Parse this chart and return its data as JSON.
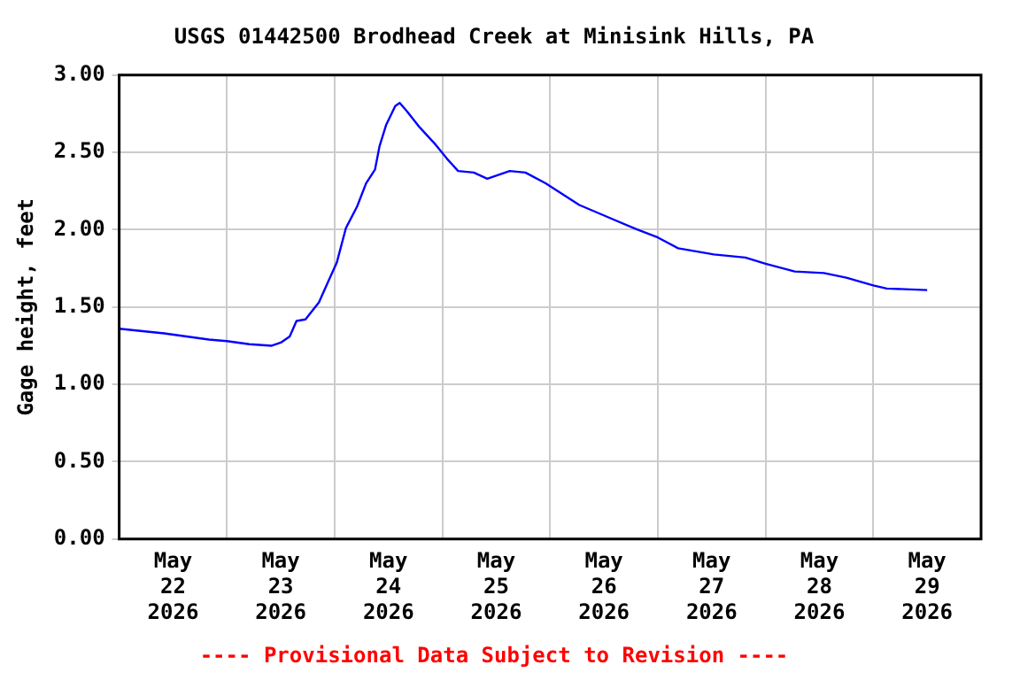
{
  "chart_data": {
    "type": "line",
    "title": "USGS 01442500 Brodhead Creek at Minisink Hills, PA",
    "ylabel": "Gage height, feet",
    "annotations": [
      "---- Provisional Data Subject to Revision ----"
    ],
    "x": [
      "2026-05-22T00:00",
      "2026-05-22T10:00",
      "2026-05-22T20:00",
      "2026-05-23T00:00",
      "2026-05-23T05:00",
      "2026-05-23T10:00",
      "2026-05-23T12:00",
      "2026-05-23T14:00",
      "2026-05-23T15:30",
      "2026-05-23T17:30",
      "2026-05-23T20:30",
      "2026-05-23T22:30",
      "2026-05-24T00:30",
      "2026-05-24T02:30",
      "2026-05-24T05:00",
      "2026-05-24T07:00",
      "2026-05-24T09:00",
      "2026-05-24T10:00",
      "2026-05-24T11:30",
      "2026-05-24T13:30",
      "2026-05-24T14:30",
      "2026-05-24T16:00",
      "2026-05-24T19:00",
      "2026-05-24T22:30",
      "2026-05-25T01:00",
      "2026-05-25T03:30",
      "2026-05-25T07:00",
      "2026-05-25T10:00",
      "2026-05-25T15:00",
      "2026-05-25T18:30",
      "2026-05-25T23:00",
      "2026-05-26T06:30",
      "2026-05-26T13:00",
      "2026-05-26T19:30",
      "2026-05-27T00:00",
      "2026-05-27T04:30",
      "2026-05-27T12:30",
      "2026-05-27T19:30",
      "2026-05-28T00:00",
      "2026-05-28T06:30",
      "2026-05-28T13:00",
      "2026-05-28T18:00",
      "2026-05-29T00:00",
      "2026-05-29T03:00",
      "2026-05-29T12:00"
    ],
    "series": [
      {
        "color": "#0000ff",
        "values": [
          1.36,
          1.33,
          1.29,
          1.28,
          1.26,
          1.25,
          1.27,
          1.31,
          1.41,
          1.42,
          1.53,
          1.66,
          1.79,
          2.01,
          2.15,
          2.3,
          2.39,
          2.54,
          2.68,
          2.8,
          2.82,
          2.77,
          2.66,
          2.55,
          2.46,
          2.38,
          2.37,
          2.33,
          2.38,
          2.37,
          2.3,
          2.16,
          2.08,
          2.0,
          1.95,
          1.88,
          1.84,
          1.82,
          1.78,
          1.73,
          1.72,
          1.69,
          1.64,
          1.62,
          1.61
        ]
      }
    ],
    "xlim": [
      "2026-05-22T00:00",
      "2026-05-30T00:00"
    ],
    "xticks": [
      {
        "value": "2026-05-22T12:00",
        "label": "May\n22\n2026"
      },
      {
        "value": "2026-05-23T00:00",
        "label": null
      },
      {
        "value": "2026-05-23T12:00",
        "label": "May\n23\n2026"
      },
      {
        "value": "2026-05-24T00:00",
        "label": null
      },
      {
        "value": "2026-05-24T12:00",
        "label": "May\n24\n2026"
      },
      {
        "value": "2026-05-25T00:00",
        "label": null
      },
      {
        "value": "2026-05-25T12:00",
        "label": "May\n25\n2026"
      },
      {
        "value": "2026-05-26T00:00",
        "label": null
      },
      {
        "value": "2026-05-26T12:00",
        "label": "May\n26\n2026"
      },
      {
        "value": "2026-05-27T00:00",
        "label": null
      },
      {
        "value": "2026-05-27T12:00",
        "label": "May\n27\n2026"
      },
      {
        "value": "2026-05-28T00:00",
        "label": null
      },
      {
        "value": "2026-05-28T12:00",
        "label": "May\n28\n2026"
      },
      {
        "value": "2026-05-29T00:00",
        "label": null
      },
      {
        "value": "2026-05-29T12:00",
        "label": "May\n29\n2026"
      }
    ],
    "ylim": [
      0,
      3
    ],
    "yticks": [
      {
        "value": 0,
        "label": "0.00"
      },
      {
        "value": 0.5,
        "label": "0.50"
      },
      {
        "value": 1,
        "label": "1.00"
      },
      {
        "value": 1.5,
        "label": "1.50"
      },
      {
        "value": 2,
        "label": "2.00"
      },
      {
        "value": 2.5,
        "label": "2.50"
      },
      {
        "value": 3,
        "label": "3.00"
      }
    ],
    "grid": true,
    "legend": false,
    "marker": "none",
    "line_style": "solid"
  }
}
